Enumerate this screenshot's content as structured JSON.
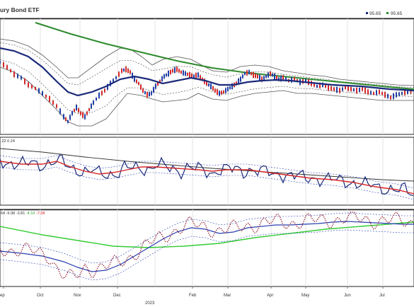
{
  "header": {
    "title": "ury Bond ETF",
    "last_label_1": "95.65",
    "last_label_2": "95.65"
  },
  "panels": {
    "rsi_label": ".22 0.24",
    "macd_label_parts": [
      {
        "text": "64",
        "color": "#333333"
      },
      {
        "text": " -6.98",
        "color": "#333333"
      },
      {
        "text": " -3.81",
        "color": "#333333"
      },
      {
        "text": " -4.10",
        "color": "#2ca02c"
      },
      {
        "text": " -7.38",
        "color": "#d62728"
      }
    ]
  },
  "x_axis": {
    "month_labels": [
      "ep",
      "Oct",
      "Nov",
      "Dec",
      "2023",
      "Feb",
      "Mar",
      "Apr",
      "May",
      "Jun",
      "Jul"
    ],
    "year_label": "2023"
  },
  "colors": {
    "price_up": "#1f3ea8",
    "price_down": "#d62728",
    "ma_short": "#1a2a7a",
    "ma_long": "#2e8b2e",
    "bollinger": "#555555",
    "rsi_line": "#1a2a7a",
    "rsi_signal": "#d62728",
    "macd_dots": "#8b1a2b",
    "macd_signal": "#2a3fb0",
    "macd_slow": "#33cc33"
  },
  "chart_data": {
    "type": "line",
    "x": [
      "Sep",
      "Oct",
      "Nov",
      "Dec",
      "Jan 2023",
      "Feb",
      "Mar",
      "Apr",
      "May",
      "Jun",
      "Jul"
    ],
    "series": [
      {
        "values": [
          97.0,
          95.0,
          94.8,
          96.4,
          96.1,
          96.3,
          96.0,
          96.1,
          96.0,
          95.8,
          95.65
        ]
      },
      {
        "values": [
          97.2,
          96.2,
          95.4,
          95.9,
          96.2,
          96.3,
          96.2,
          96.2,
          96.1,
          95.9,
          95.7
        ]
      },
      {
        "values": [
          97.8,
          97.3,
          96.9,
          96.6,
          96.4,
          96.25,
          96.1,
          96.0,
          95.9,
          95.8,
          95.7
        ]
      }
    ],
    "last_value": 95.65
  }
}
